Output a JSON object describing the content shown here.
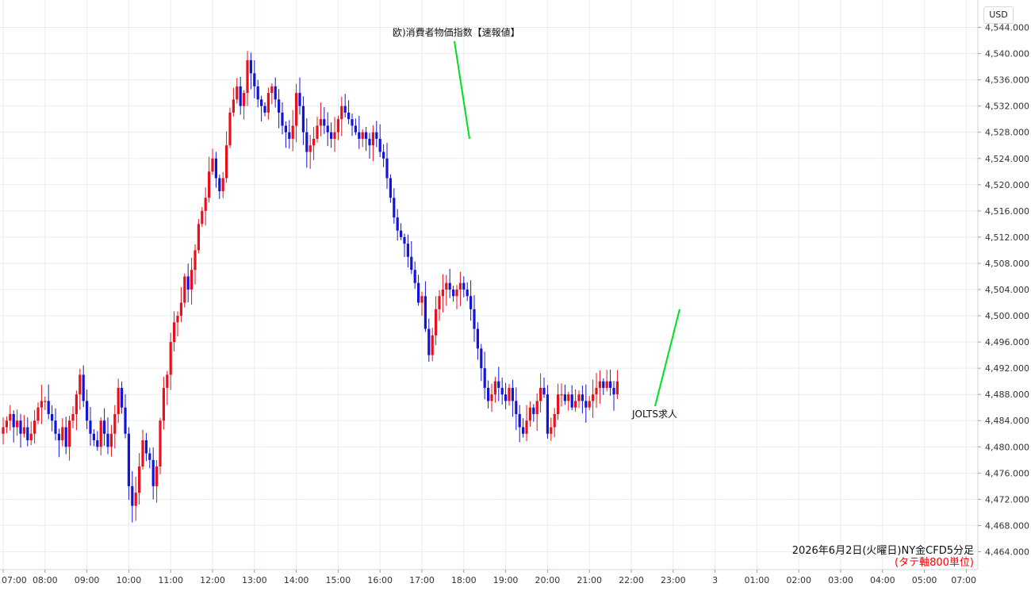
{
  "currency_label": "USD",
  "caption": "2026年6月2日(火曜日)NY金CFD5分足",
  "unit_note": "(タテ軸800単位)",
  "colors": {
    "up": "#e8101a",
    "down": "#1414d8",
    "grid": "#e6eef2",
    "annotation_line": "#00e01a"
  },
  "chart_data": {
    "type": "candlestick",
    "interval": "5min",
    "ylim": [
      4462,
      4546
    ],
    "y_ticks": [
      "4,464.000",
      "4,468.000",
      "4,472.000",
      "4,476.000",
      "4,480.000",
      "4,484.000",
      "4,488.000",
      "4,492.000",
      "4,496.000",
      "4,500.000",
      "4,504.000",
      "4,508.000",
      "4,512.000",
      "4,516.000",
      "4,520.000",
      "4,524.000",
      "4,528.000",
      "4,532.000",
      "4,536.000",
      "4,540.000",
      "4,544.000"
    ],
    "x_ticks": [
      "07:00",
      "08:00",
      "09:00",
      "10:00",
      "11:00",
      "12:00",
      "13:00",
      "14:00",
      "15:00",
      "16:00",
      "17:00",
      "18:00",
      "19:00",
      "20:00",
      "21:00",
      "22:00",
      "23:00",
      "3",
      "01:00",
      "02:00",
      "03:00",
      "04:00",
      "05:00",
      "07:00"
    ],
    "x_tick_slots": [
      0,
      12,
      24,
      36,
      48,
      60,
      72,
      84,
      96,
      108,
      120,
      132,
      144,
      156,
      168,
      180,
      192,
      204,
      216,
      228,
      240,
      252,
      264,
      276
    ],
    "closes": [
      4483,
      4484,
      4485,
      4483,
      4484,
      4482,
      4483,
      4481,
      4482,
      4484,
      4486,
      4487,
      4487,
      4485,
      4484,
      4482,
      4481,
      4483,
      4480,
      4484,
      4485,
      4488,
      4491,
      4487,
      4484,
      4482,
      4481,
      4480,
      4484,
      4482,
      4480,
      4482,
      4485,
      4489,
      4486,
      4482,
      4474,
      4471,
      4473,
      4477,
      4481,
      4479,
      4478,
      4474,
      4477,
      4484,
      4489,
      4491,
      4496,
      4499,
      4500,
      4502,
      4506,
      4504,
      4507,
      4510,
      4514,
      4516,
      4518,
      4522,
      4524,
      4521,
      4519,
      4521,
      4526,
      4531,
      4533,
      4535,
      4532,
      4534,
      4539,
      4537,
      4535,
      4533,
      4532,
      4531,
      4534,
      4535,
      4533,
      4531,
      4529,
      4528,
      4527,
      4529,
      4534,
      4532,
      4528,
      4525,
      4526,
      4527,
      4529,
      4530,
      4529,
      4528,
      4527,
      4528,
      4530,
      4532,
      4531,
      4530,
      4529,
      4528,
      4527,
      4528,
      4527,
      4526,
      4528,
      4527,
      4525,
      4524,
      4521,
      4518,
      4515,
      4513,
      4512,
      4511,
      4509,
      4507,
      4505,
      4502,
      4503,
      4498,
      4494,
      4497,
      4501,
      4503,
      4504,
      4505,
      4504,
      4503,
      4504,
      4505,
      4504,
      4503,
      4501,
      4498,
      4495,
      4492,
      4489,
      4487,
      4488,
      4490,
      4489,
      4488,
      4487,
      4489,
      4487,
      4485,
      4483,
      4482,
      4484,
      4486,
      4485,
      4487,
      4489,
      4488,
      4482,
      4483,
      4485,
      4488,
      4488,
      4487,
      4488,
      4486,
      4487,
      4488,
      4487,
      4486,
      4487,
      4488,
      4489,
      4490,
      4489,
      4490,
      4489,
      4488,
      4490
    ],
    "annotations": [
      {
        "text": "欧)消費者物価指数【速報値】",
        "at_price": 4527
      },
      {
        "text": "JOLTS求人",
        "at_price": 4501
      }
    ]
  }
}
